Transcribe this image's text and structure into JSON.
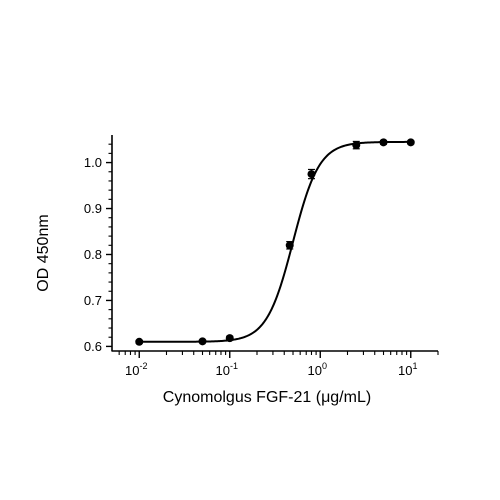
{
  "chart_data": {
    "type": "scatter",
    "xlabel": "Cynomolgus FGF-21 (μg/mL)",
    "ylabel": "OD 450nm",
    "x_scale": "log",
    "xlim": [
      0.005,
      20
    ],
    "ylim": [
      0.59,
      1.06
    ],
    "x_ticks": [
      {
        "value": 0.01,
        "base": "10",
        "exp": "-2"
      },
      {
        "value": 0.1,
        "base": "10",
        "exp": "-1"
      },
      {
        "value": 1,
        "base": "10",
        "exp": "0"
      },
      {
        "value": 10,
        "base": "10",
        "exp": "1"
      }
    ],
    "y_ticks": [
      {
        "value": 0.6,
        "label": "0.6"
      },
      {
        "value": 0.7,
        "label": "0.7"
      },
      {
        "value": 0.8,
        "label": "0.8"
      },
      {
        "value": 0.9,
        "label": "0.9"
      },
      {
        "value": 1.0,
        "label": "1.0"
      }
    ],
    "grid": false,
    "legend": "none",
    "series": [
      {
        "points": [
          {
            "x": 0.01,
            "y": 0.61,
            "err": 0.003
          },
          {
            "x": 0.05,
            "y": 0.611,
            "err": 0.003
          },
          {
            "x": 0.1,
            "y": 0.618,
            "err": 0.004
          },
          {
            "x": 0.46,
            "y": 0.82,
            "err": 0.008
          },
          {
            "x": 0.8,
            "y": 0.975,
            "err": 0.01
          },
          {
            "x": 2.5,
            "y": 1.038,
            "err": 0.008
          },
          {
            "x": 5,
            "y": 1.044,
            "err": 0.004
          },
          {
            "x": 10,
            "y": 1.044,
            "err": 0.003
          }
        ],
        "fit": {
          "model": "4PL",
          "bottom": 0.61,
          "top": 1.045,
          "ec50": 0.5,
          "hill": 3.0
        }
      }
    ],
    "colors": {
      "marker": "#000000",
      "line": "#000000"
    }
  }
}
